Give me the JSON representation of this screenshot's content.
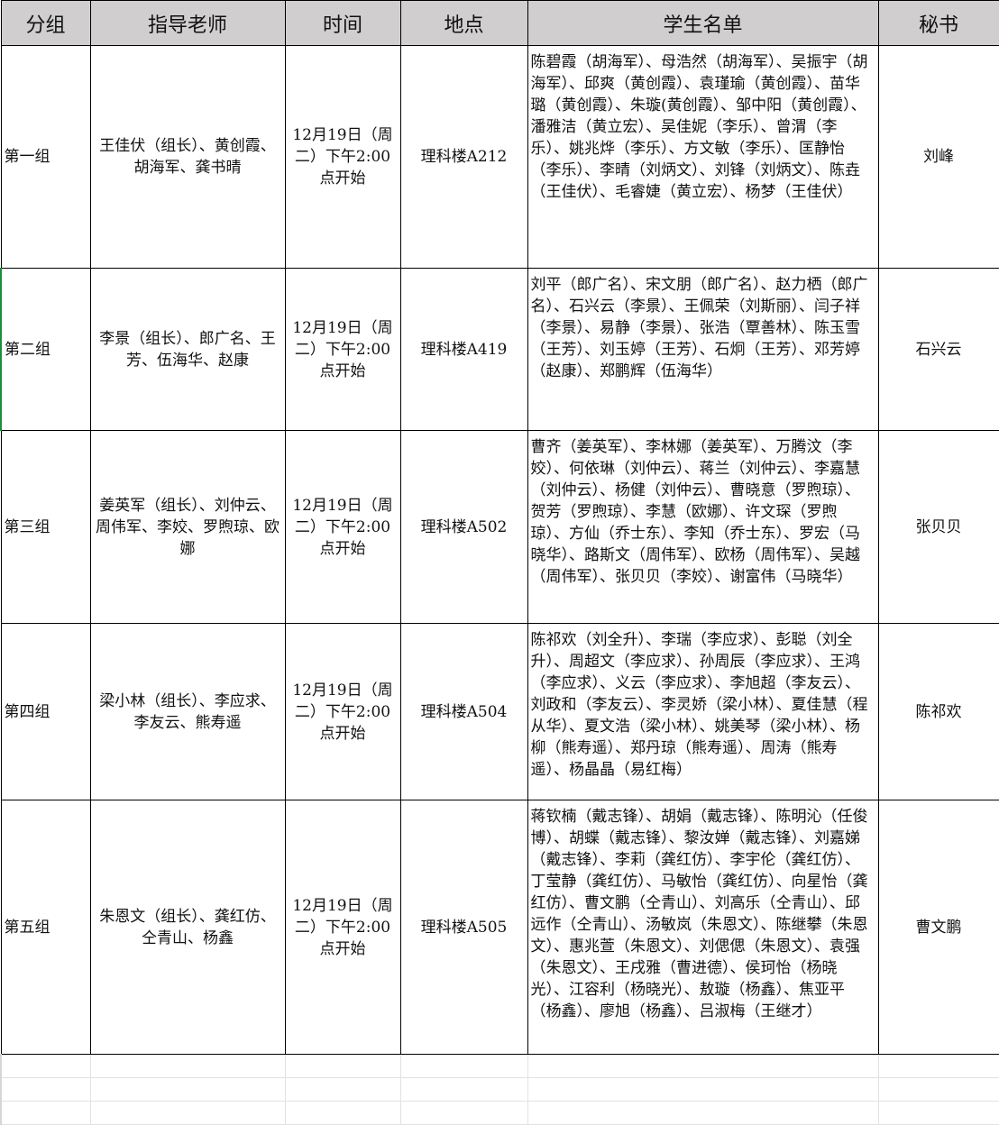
{
  "headers": [
    "分组",
    "指导老师",
    "时间",
    "地点",
    "学生名单",
    "秘书"
  ],
  "rows": [
    {
      "group": "第一组",
      "teachers": "王佳伏（组长）、黄创霞、胡海军、龚书晴",
      "time": "12月19日（周二）下午2:00点开始",
      "place": "理科楼A212",
      "students": "陈碧霞（胡海军）、母浩然（胡海军）、吴振宇（胡海军）、邱爽（黄创霞）、袁瑾瑜（黄创霞）、苗华璐（黄创霞）、朱璇(黄创霞）、邹中阳（黄创霞）、潘雅洁（黄立宏）、吴佳妮（李乐）、曾渭（李乐）、姚兆烨（李乐）、方文敏（李乐）、匡静怡（李乐）、李晴（刘炳文）、刘锋（刘炳文）、陈垚（王佳伏）、毛睿婕（黄立宏）、杨梦（王佳伏）",
      "secretary": "刘峰"
    },
    {
      "group": "第二组",
      "teachers": "李景（组长）、郎广名、王芳、伍海华、赵康",
      "time": "12月19日（周二）下午2:00点开始",
      "place": "理科楼A419",
      "students": "刘平（郎广名）、宋文朋（郎广名）、赵力栖（郎广名）、石兴云（李景）、王佩荣（刘斯丽）、闫子祥（李景）、易静（李景）、张浩（覃善林）、陈玉雪（王芳）、刘玉婷（王芳）、石炯（王芳）、邓芳婷（赵康）、郑鹏辉（伍海华）",
      "secretary": "石兴云"
    },
    {
      "group": "第三组",
      "teachers": "姜英军（组长）、刘仲云、周伟军、李姣、罗煦琼、欧娜",
      "time": "12月19日（周二）下午2:00点开始",
      "place": "理科楼A502",
      "students": "曹齐（姜英军）、李林娜（姜英军）、万腾汶（李姣）、何依琳（刘仲云）、蒋兰（刘仲云）、李嘉慧（刘仲云）、杨健（刘仲云）、曹晓意（罗煦琼）、贺芳（罗煦琼）、李慧（欧娜）、许文琛（罗煦琼）、方仙（乔士东）、李知（乔士东）、罗宏（马晓华）、路斯文（周伟军）、欧杨（周伟军）、吴越（周伟军）、张贝贝（李姣）、谢富伟（马晓华）",
      "secretary": "张贝贝"
    },
    {
      "group": "第四组",
      "teachers": "梁小林（组长）、李应求、李友云、熊寿遥",
      "time": "12月19日（周二）下午2:00点开始",
      "place": "理科楼A504",
      "students": "陈祁欢（刘全升）、李瑞（李应求）、彭聪（刘全升）、周超文（李应求）、孙周辰（李应求）、王鸿（李应求）、义云（李应求）、李旭超（李友云）、刘政和（李友云）、李灵娇（梁小林）、夏佳慧（程从华）、夏文浩（梁小林）、姚美琴（梁小林）、杨柳（熊寿遥）、郑丹琼（熊寿遥）、周涛（熊寿遥）、杨晶晶（易红梅）",
      "secretary": "陈祁欢"
    },
    {
      "group": "第五组",
      "teachers": "朱恩文（组长）、龚红仿、仝青山、杨鑫",
      "time": "12月19日（周二）下午2:00点开始",
      "place": "理科楼A505",
      "students": "蒋钦楠（戴志锋）、胡娟（戴志锋）、陈明沁（任俊博）、胡蝶（戴志锋）、黎汝婵（戴志锋）、刘嘉娣（戴志锋）、李莉（龚红仿）、李宇伦（龚红仿）、丁莹静（龚红仿）、马敏怡（龚红仿）、向星怡（龚红仿）、曹文鹏（仝青山）、刘高乐（仝青山）、邱远作（仝青山）、汤敏岚（朱恩文）、陈继攀（朱恩文）、惠兆萱（朱恩文）、刘偲偲（朱恩文）、袁强（朱恩文）、王戌雅（曹进德）、侯珂怡（杨晓光）、江容利（杨晓光）、敖璇（杨鑫）、焦亚平（杨鑫）、廖旭（杨鑫）、吕淑梅（王继才）",
      "secretary": "曹文鹏"
    }
  ],
  "colors": {
    "header_bg": "#d0cece",
    "selected_border": "#1e8e3e",
    "grid": "#e2e2e2"
  }
}
